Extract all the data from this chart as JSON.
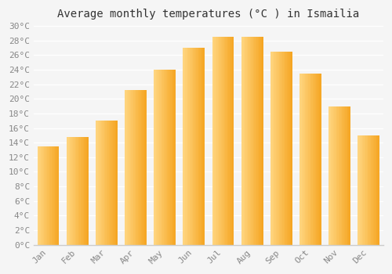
{
  "title": "Average monthly temperatures (°C ) in Ismailia",
  "months": [
    "Jan",
    "Feb",
    "Mar",
    "Apr",
    "May",
    "Jun",
    "Jul",
    "Aug",
    "Sep",
    "Oct",
    "Nov",
    "Dec"
  ],
  "temperatures": [
    13.5,
    14.8,
    17.0,
    21.2,
    24.0,
    27.0,
    28.5,
    28.5,
    26.5,
    23.5,
    19.0,
    15.0
  ],
  "bar_color_dark": "#F5A623",
  "bar_color_light": "#FFD580",
  "ylim": [
    0,
    30
  ],
  "ytick_step": 2,
  "background_color": "#f5f5f5",
  "plot_bg_color": "#f5f5f5",
  "grid_color": "#ffffff",
  "title_fontsize": 10,
  "tick_fontsize": 8,
  "tick_color": "#888888",
  "label_color": "#555555"
}
